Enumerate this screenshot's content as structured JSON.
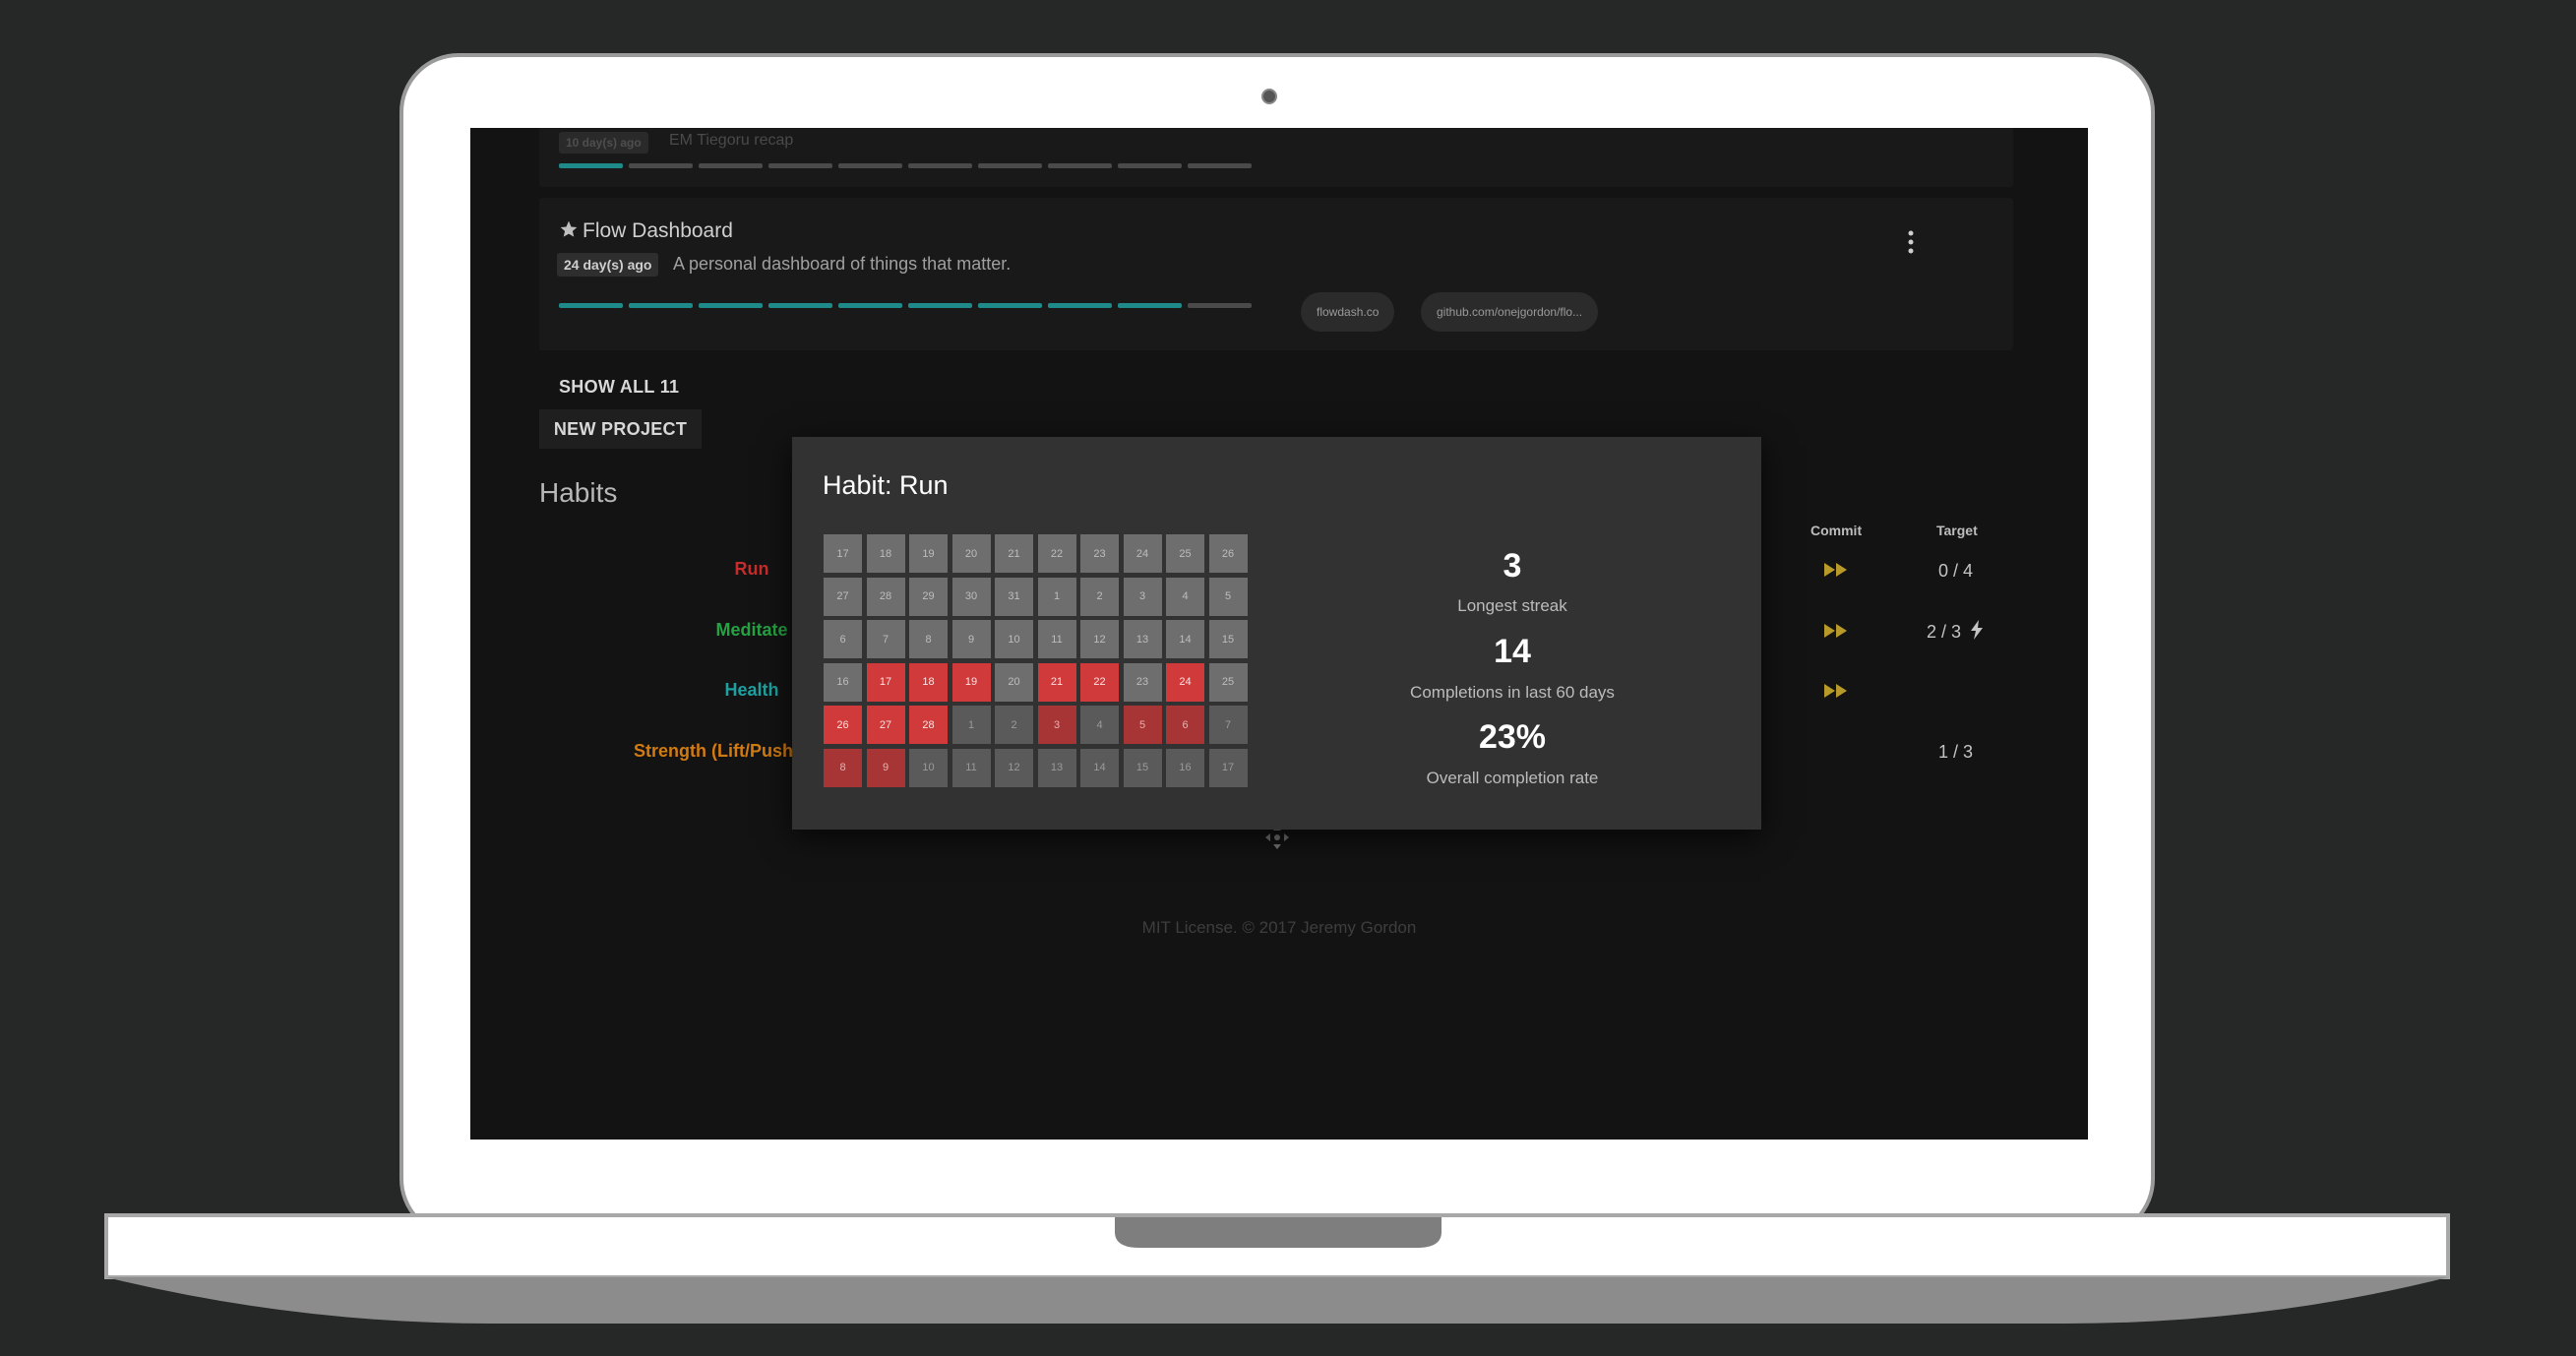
{
  "projects": [
    {
      "title": "",
      "age": "10 day(s) ago",
      "description": "EM Tiegoru recap",
      "progress": 0.1
    },
    {
      "title": "Flow Dashboard",
      "age": "24 day(s) ago",
      "description": "A personal dashboard of things that matter.",
      "progress": 0.9,
      "links": [
        "flowdash.co",
        "github.com/onejgordon/flo..."
      ],
      "starred": true
    }
  ],
  "actions": {
    "show_all": "SHOW ALL 11",
    "new_project": "NEW PROJECT"
  },
  "habits": {
    "section_title": "Habits",
    "columns": {
      "commit": "Commit",
      "target": "Target"
    },
    "items": [
      {
        "name": "Run",
        "color": "#c62c2c",
        "commit": true,
        "target": "0 / 4"
      },
      {
        "name": "Meditate",
        "color": "#25a242",
        "commit": true,
        "target": "2 / 3"
      },
      {
        "name": "Health",
        "color": "#1fa0a0",
        "commit": true,
        "target": ""
      },
      {
        "name": "Strength (Lift/Pushu",
        "color": "#d17b12",
        "commit": false,
        "target": "1 / 3"
      }
    ]
  },
  "modal": {
    "title": "Habit: Run",
    "calendar": {
      "rows": [
        [
          "17",
          "18",
          "19",
          "20",
          "21",
          "22",
          "23",
          "24",
          "25",
          "26"
        ],
        [
          "27",
          "28",
          "29",
          "30",
          "31",
          "1",
          "2",
          "3",
          "4",
          "5"
        ],
        [
          "6",
          "7",
          "8",
          "9",
          "10",
          "11",
          "12",
          "13",
          "14",
          "15"
        ],
        [
          "16",
          "17",
          "18",
          "19",
          "20",
          "21",
          "22",
          "23",
          "24",
          "25"
        ],
        [
          "26",
          "27",
          "28",
          "1",
          "2",
          "3",
          "4",
          "5",
          "6",
          "7"
        ],
        [
          "8",
          "9",
          "10",
          "11",
          "12",
          "13",
          "14",
          "15",
          "16",
          "17"
        ]
      ],
      "done": [
        [
          3,
          1
        ],
        [
          3,
          2
        ],
        [
          3,
          3
        ],
        [
          3,
          5
        ],
        [
          3,
          6
        ],
        [
          3,
          8
        ],
        [
          4,
          0
        ],
        [
          4,
          1
        ],
        [
          4,
          2
        ],
        [
          4,
          5
        ],
        [
          4,
          7
        ],
        [
          4,
          8
        ],
        [
          5,
          0
        ],
        [
          5,
          1
        ]
      ]
    },
    "stats": [
      {
        "value": "3",
        "label": "Longest streak"
      },
      {
        "value": "14",
        "label": "Completions in last 60 days"
      },
      {
        "value": "23%",
        "label": "Overall completion rate"
      }
    ]
  },
  "footer": "MIT License. © 2017 Jeremy Gordon",
  "colors": {
    "accent": "#1f8a8a",
    "done": "#d03a3a",
    "commit": "#b89a2a"
  }
}
